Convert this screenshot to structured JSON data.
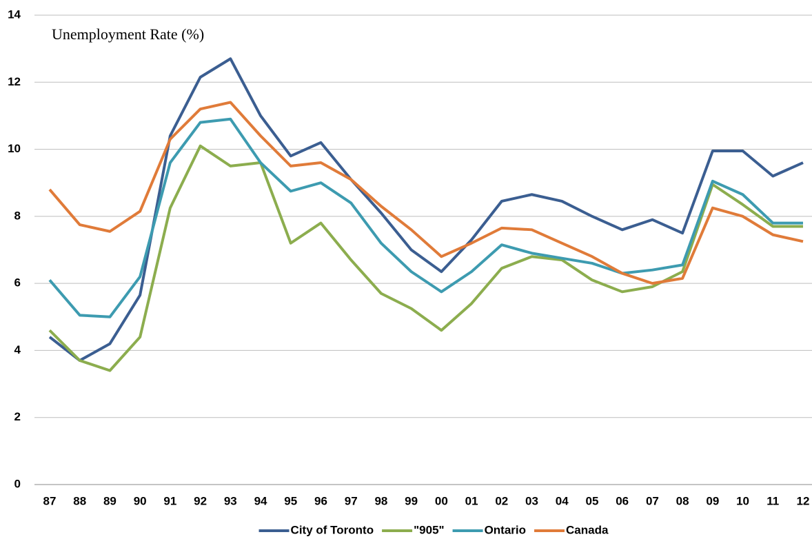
{
  "chart_data": {
    "type": "line",
    "title": "Unemployment Rate (%)",
    "categories": [
      "87",
      "88",
      "89",
      "90",
      "91",
      "92",
      "93",
      "94",
      "95",
      "96",
      "97",
      "98",
      "99",
      "00",
      "01",
      "02",
      "03",
      "04",
      "05",
      "06",
      "07",
      "08",
      "09",
      "10",
      "11",
      "12"
    ],
    "series": [
      {
        "name": "City of Toronto",
        "color": "#3b5e91",
        "values": [
          4.4,
          3.7,
          4.2,
          5.65,
          10.4,
          12.15,
          12.7,
          11.0,
          9.8,
          10.2,
          9.1,
          8.1,
          7.0,
          6.35,
          7.3,
          8.45,
          8.65,
          8.45,
          8.0,
          7.6,
          7.9,
          7.5,
          9.95,
          9.95,
          9.2,
          9.6
        ]
      },
      {
        "name": "\"905\"",
        "color": "#8cad4e",
        "values": [
          4.6,
          3.7,
          3.4,
          4.4,
          8.25,
          10.1,
          9.5,
          9.6,
          7.2,
          7.8,
          6.7,
          5.7,
          5.25,
          4.6,
          5.4,
          6.45,
          6.8,
          6.7,
          6.1,
          5.75,
          5.9,
          6.35,
          8.95,
          8.35,
          7.7,
          7.7
        ]
      },
      {
        "name": "Ontario",
        "color": "#3d9bb0",
        "values": [
          6.1,
          5.05,
          5.0,
          6.2,
          9.6,
          10.8,
          10.9,
          9.6,
          8.75,
          9.0,
          8.4,
          7.2,
          6.35,
          5.75,
          6.35,
          7.15,
          6.9,
          6.75,
          6.6,
          6.3,
          6.4,
          6.55,
          9.05,
          8.65,
          7.8,
          7.8
        ]
      },
      {
        "name": "Canada",
        "color": "#e07b39",
        "values": [
          8.8,
          7.75,
          7.55,
          8.15,
          10.3,
          11.2,
          11.4,
          10.4,
          9.5,
          9.6,
          9.1,
          8.3,
          7.6,
          6.8,
          7.2,
          7.65,
          7.6,
          7.2,
          6.8,
          6.3,
          6.0,
          6.15,
          8.25,
          8.0,
          7.45,
          7.25
        ]
      }
    ],
    "ylim": [
      0,
      14
    ],
    "yticks": [
      0,
      2,
      4,
      6,
      8,
      10,
      12,
      14
    ],
    "grid": true,
    "legend": "bottom"
  }
}
